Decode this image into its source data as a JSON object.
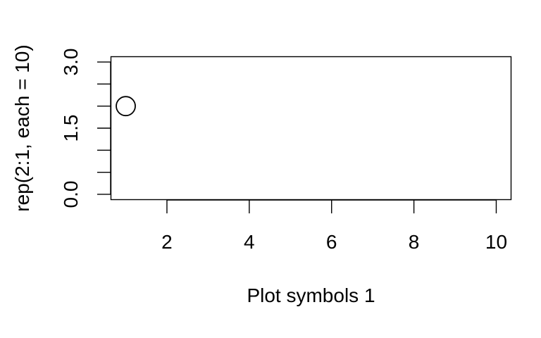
{
  "chart_data": {
    "type": "scatter",
    "title": "",
    "xlabel": "Plot symbols 1",
    "ylabel": "rep(2:1, each = 10)",
    "xlim": [
      0.64,
      10.36
    ],
    "ylim": [
      -0.12,
      3.12
    ],
    "xticks": [
      2,
      4,
      6,
      8,
      10
    ],
    "xtick_labels": [
      "2",
      "4",
      "6",
      "8",
      "10"
    ],
    "yticks": [
      0,
      0.5,
      1,
      1.5,
      2,
      2.5,
      3
    ],
    "ytick_labels": [
      "0.0",
      "",
      "",
      "1.5",
      "",
      "",
      "3.0"
    ],
    "grid": false,
    "marker": "open-circle",
    "series": [
      {
        "x": [
          1
        ],
        "y": [
          2
        ],
        "color": "#000000"
      }
    ]
  }
}
